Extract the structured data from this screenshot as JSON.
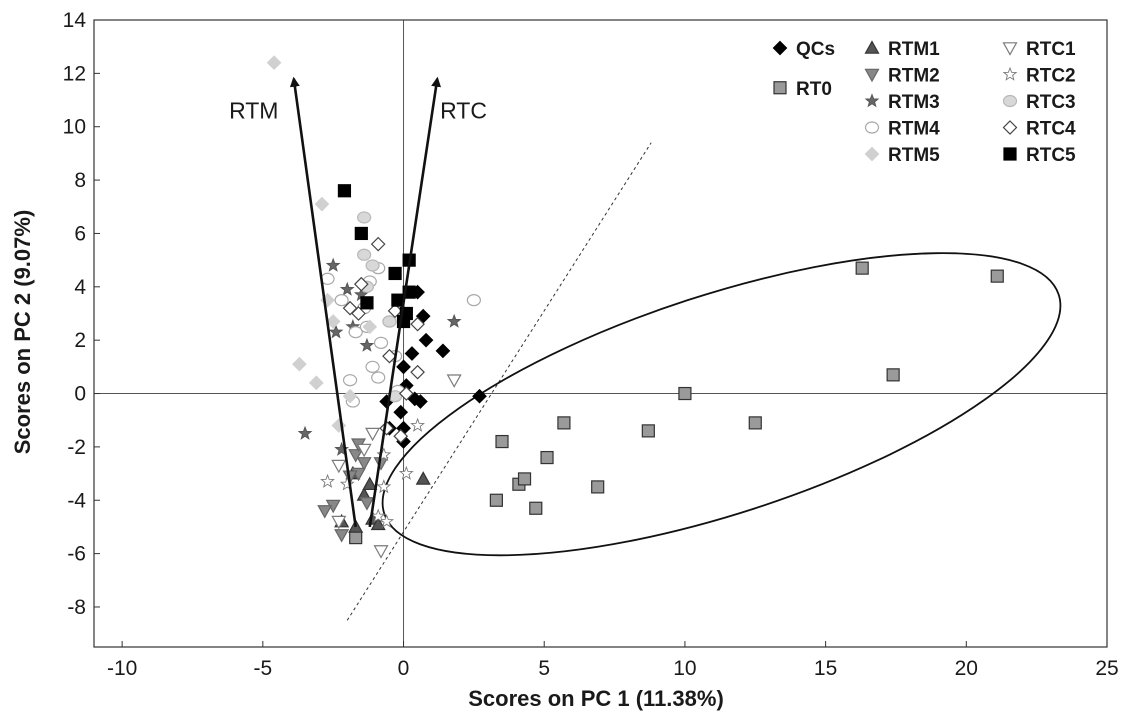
{
  "chart_data": {
    "type": "scatter",
    "xlabel": "Scores on PC 1 (11.38%)",
    "ylabel": "Scores on PC 2 (9.07%)",
    "xlim": [
      -11,
      25
    ],
    "ylim": [
      -9.5,
      14
    ],
    "xticks": [
      -10,
      -5,
      0,
      5,
      10,
      15,
      20,
      25
    ],
    "yticks": [
      -8,
      -6,
      -4,
      -2,
      0,
      2,
      4,
      6,
      8,
      10,
      12,
      14
    ],
    "grid": false,
    "zero_lines": true,
    "legend_position": "top-right",
    "styles": {
      "QCs": {
        "marker": "diamond",
        "fill": "#000000",
        "stroke": "#000000"
      },
      "RT0": {
        "marker": "square",
        "fill": "#9a9a9a",
        "stroke": "#333333"
      },
      "RTM1": {
        "marker": "triangle-up",
        "fill": "#555555",
        "stroke": "#333333"
      },
      "RTM2": {
        "marker": "triangle-down",
        "fill": "#888888",
        "stroke": "#666666"
      },
      "RTM3": {
        "marker": "star",
        "fill": "#666666",
        "stroke": "#555555"
      },
      "RTM4": {
        "marker": "circle",
        "fill": "#ffffff",
        "stroke": "#a8a8a8"
      },
      "RTM5": {
        "marker": "diamond",
        "fill": "#d0d0d0",
        "stroke": "#d0d0d0"
      },
      "RTC1": {
        "marker": "triangle-down",
        "fill": "#ffffff",
        "stroke": "#7a7a7a"
      },
      "RTC2": {
        "marker": "star",
        "fill": "#ffffff",
        "stroke": "#7a7a7a"
      },
      "RTC3": {
        "marker": "circle",
        "fill": "#d8d8d8",
        "stroke": "#b8b8b8"
      },
      "RTC4": {
        "marker": "diamond",
        "fill": "#ffffff",
        "stroke": "#444444"
      },
      "RTC5": {
        "marker": "square",
        "fill": "#000000",
        "stroke": "#000000"
      }
    },
    "legend": [
      {
        "name": "QCs",
        "col": 0,
        "row": 0
      },
      {
        "name": "RT0",
        "col": 0,
        "row": 1.5
      },
      {
        "name": "RTM1",
        "col": 1,
        "row": 0
      },
      {
        "name": "RTM2",
        "col": 1,
        "row": 1
      },
      {
        "name": "RTM3",
        "col": 1,
        "row": 2
      },
      {
        "name": "RTM4",
        "col": 1,
        "row": 3
      },
      {
        "name": "RTM5",
        "col": 1,
        "row": 4
      },
      {
        "name": "RTC1",
        "col": 2,
        "row": 0
      },
      {
        "name": "RTC2",
        "col": 2,
        "row": 1
      },
      {
        "name": "RTC3",
        "col": 2,
        "row": 2
      },
      {
        "name": "RTC4",
        "col": 2,
        "row": 3
      },
      {
        "name": "RTC5",
        "col": 2,
        "row": 4
      }
    ],
    "series": [
      {
        "name": "QCs",
        "points": [
          [
            -0.6,
            -0.3
          ],
          [
            -0.5,
            -1.3
          ],
          [
            0.0,
            -1.3
          ],
          [
            0.0,
            -1.8
          ],
          [
            0.1,
            0.3
          ],
          [
            0.3,
            1.5
          ],
          [
            0.4,
            -0.2
          ],
          [
            0.6,
            -0.3
          ],
          [
            0.7,
            2.9
          ],
          [
            0.8,
            2.0
          ],
          [
            0.5,
            3.8
          ],
          [
            1.4,
            1.6
          ],
          [
            2.7,
            -0.1
          ],
          [
            0.0,
            1.0
          ],
          [
            -0.1,
            -0.7
          ]
        ]
      },
      {
        "name": "RT0",
        "points": [
          [
            -1.7,
            -5.4
          ],
          [
            3.5,
            -1.8
          ],
          [
            3.3,
            -4.0
          ],
          [
            4.1,
            -3.4
          ],
          [
            4.3,
            -3.2
          ],
          [
            4.7,
            -4.3
          ],
          [
            5.1,
            -2.4
          ],
          [
            5.7,
            -1.1
          ],
          [
            6.9,
            -3.5
          ],
          [
            8.7,
            -1.4
          ],
          [
            10.0,
            0.0
          ],
          [
            12.5,
            -1.1
          ],
          [
            16.3,
            4.7
          ],
          [
            17.4,
            0.7
          ],
          [
            21.1,
            4.4
          ]
        ]
      },
      {
        "name": "RTM1",
        "points": [
          [
            -2.2,
            -4.8
          ],
          [
            -1.7,
            -5.0
          ],
          [
            -1.1,
            -4.7
          ],
          [
            -0.9,
            -4.9
          ],
          [
            -1.4,
            -3.8
          ],
          [
            -1.8,
            -3.0
          ],
          [
            0.7,
            -3.2
          ],
          [
            -1.2,
            -3.4
          ]
        ]
      },
      {
        "name": "RTM2",
        "points": [
          [
            -2.5,
            -4.2
          ],
          [
            -2.2,
            -5.3
          ],
          [
            -1.6,
            -3.0
          ],
          [
            -1.4,
            -2.6
          ],
          [
            -1.7,
            -2.3
          ],
          [
            -0.8,
            -2.6
          ],
          [
            -1.9,
            -3.1
          ],
          [
            -2.8,
            -4.4
          ],
          [
            -1.3,
            -4.1
          ],
          [
            -1.6,
            -1.9
          ]
        ]
      },
      {
        "name": "RTM3",
        "points": [
          [
            -3.5,
            -1.5
          ],
          [
            -2.5,
            4.8
          ],
          [
            -2.2,
            -2.1
          ],
          [
            -2.0,
            3.9
          ],
          [
            -1.8,
            2.5
          ],
          [
            -1.5,
            3.7
          ],
          [
            -1.3,
            1.8
          ],
          [
            -2.4,
            2.3
          ],
          [
            1.8,
            2.7
          ]
        ]
      },
      {
        "name": "RTM4",
        "points": [
          [
            -2.7,
            4.3
          ],
          [
            -2.2,
            3.5
          ],
          [
            -1.9,
            0.5
          ],
          [
            -1.8,
            -0.3
          ],
          [
            -1.4,
            3.2
          ],
          [
            -1.3,
            2.5
          ],
          [
            -1.2,
            4.2
          ],
          [
            -1.1,
            1.0
          ],
          [
            -0.9,
            4.7
          ],
          [
            -0.8,
            1.9
          ],
          [
            -0.5,
            2.7
          ],
          [
            -0.3,
            1.4
          ],
          [
            -0.2,
            0.1
          ],
          [
            2.5,
            3.5
          ],
          [
            -0.9,
            0.6
          ],
          [
            -1.7,
            2.3
          ]
        ]
      },
      {
        "name": "RTM5",
        "points": [
          [
            -4.6,
            12.4
          ],
          [
            -3.7,
            1.1
          ],
          [
            -3.1,
            0.4
          ],
          [
            -2.9,
            7.1
          ],
          [
            -2.7,
            3.5
          ],
          [
            -2.5,
            2.7
          ],
          [
            -1.9,
            -0.1
          ],
          [
            -1.2,
            2.5
          ],
          [
            -2.3,
            -1.2
          ]
        ]
      },
      {
        "name": "RTC1",
        "points": [
          [
            -0.8,
            -5.9
          ],
          [
            -2.3,
            -4.8
          ],
          [
            1.8,
            0.5
          ],
          [
            -1.1,
            -1.5
          ],
          [
            -2.3,
            -2.7
          ],
          [
            -1.4,
            -2.1
          ]
        ]
      },
      {
        "name": "RTC2",
        "points": [
          [
            -2.7,
            -3.3
          ],
          [
            -2.0,
            -3.4
          ],
          [
            -0.6,
            -4.8
          ],
          [
            -0.9,
            -4.6
          ],
          [
            0.1,
            -3.0
          ],
          [
            -0.7,
            -3.5
          ],
          [
            0.5,
            -1.2
          ],
          [
            -0.7,
            -2.3
          ]
        ]
      },
      {
        "name": "RTC3",
        "points": [
          [
            -1.4,
            6.6
          ],
          [
            -1.4,
            5.2
          ],
          [
            -1.3,
            4.0
          ],
          [
            -0.5,
            2.7
          ],
          [
            0.0,
            3.0
          ],
          [
            -0.3,
            -0.1
          ],
          [
            -1.1,
            4.8
          ]
        ]
      },
      {
        "name": "RTC4",
        "points": [
          [
            -1.9,
            3.2
          ],
          [
            -1.6,
            3.0
          ],
          [
            -0.9,
            5.6
          ],
          [
            -0.5,
            1.4
          ],
          [
            -0.3,
            3.1
          ],
          [
            0.5,
            2.6
          ],
          [
            0.5,
            0.8
          ],
          [
            -0.1,
            -1.6
          ],
          [
            0.1,
            0.0
          ],
          [
            -1.5,
            4.1
          ],
          [
            -0.6,
            -1.3
          ]
        ]
      },
      {
        "name": "RTC5",
        "points": [
          [
            -2.1,
            7.6
          ],
          [
            -1.5,
            6.0
          ],
          [
            -1.3,
            3.4
          ],
          [
            -0.3,
            4.5
          ],
          [
            -0.2,
            3.5
          ],
          [
            0.2,
            5.0
          ],
          [
            0.2,
            3.8
          ],
          [
            0.0,
            2.7
          ],
          [
            0.1,
            3.0
          ]
        ]
      }
    ],
    "vectors": [
      {
        "label": "RTM",
        "from": [
          -1.7,
          -5.0
        ],
        "to": [
          -3.9,
          11.8
        ],
        "label_at": [
          -6.2,
          10.3
        ]
      },
      {
        "label": "RTC",
        "from": [
          -1.2,
          -5.0
        ],
        "to": [
          1.2,
          11.8
        ],
        "label_at": [
          1.3,
          10.3
        ]
      }
    ],
    "ellipse": {
      "center": [
        11.3,
        -0.4
      ],
      "rx": 12.6,
      "ry": 4.1,
      "angle_deg": 18
    },
    "dashed_line": {
      "from": [
        -2.0,
        -8.5
      ],
      "to": [
        8.8,
        9.4
      ]
    }
  }
}
